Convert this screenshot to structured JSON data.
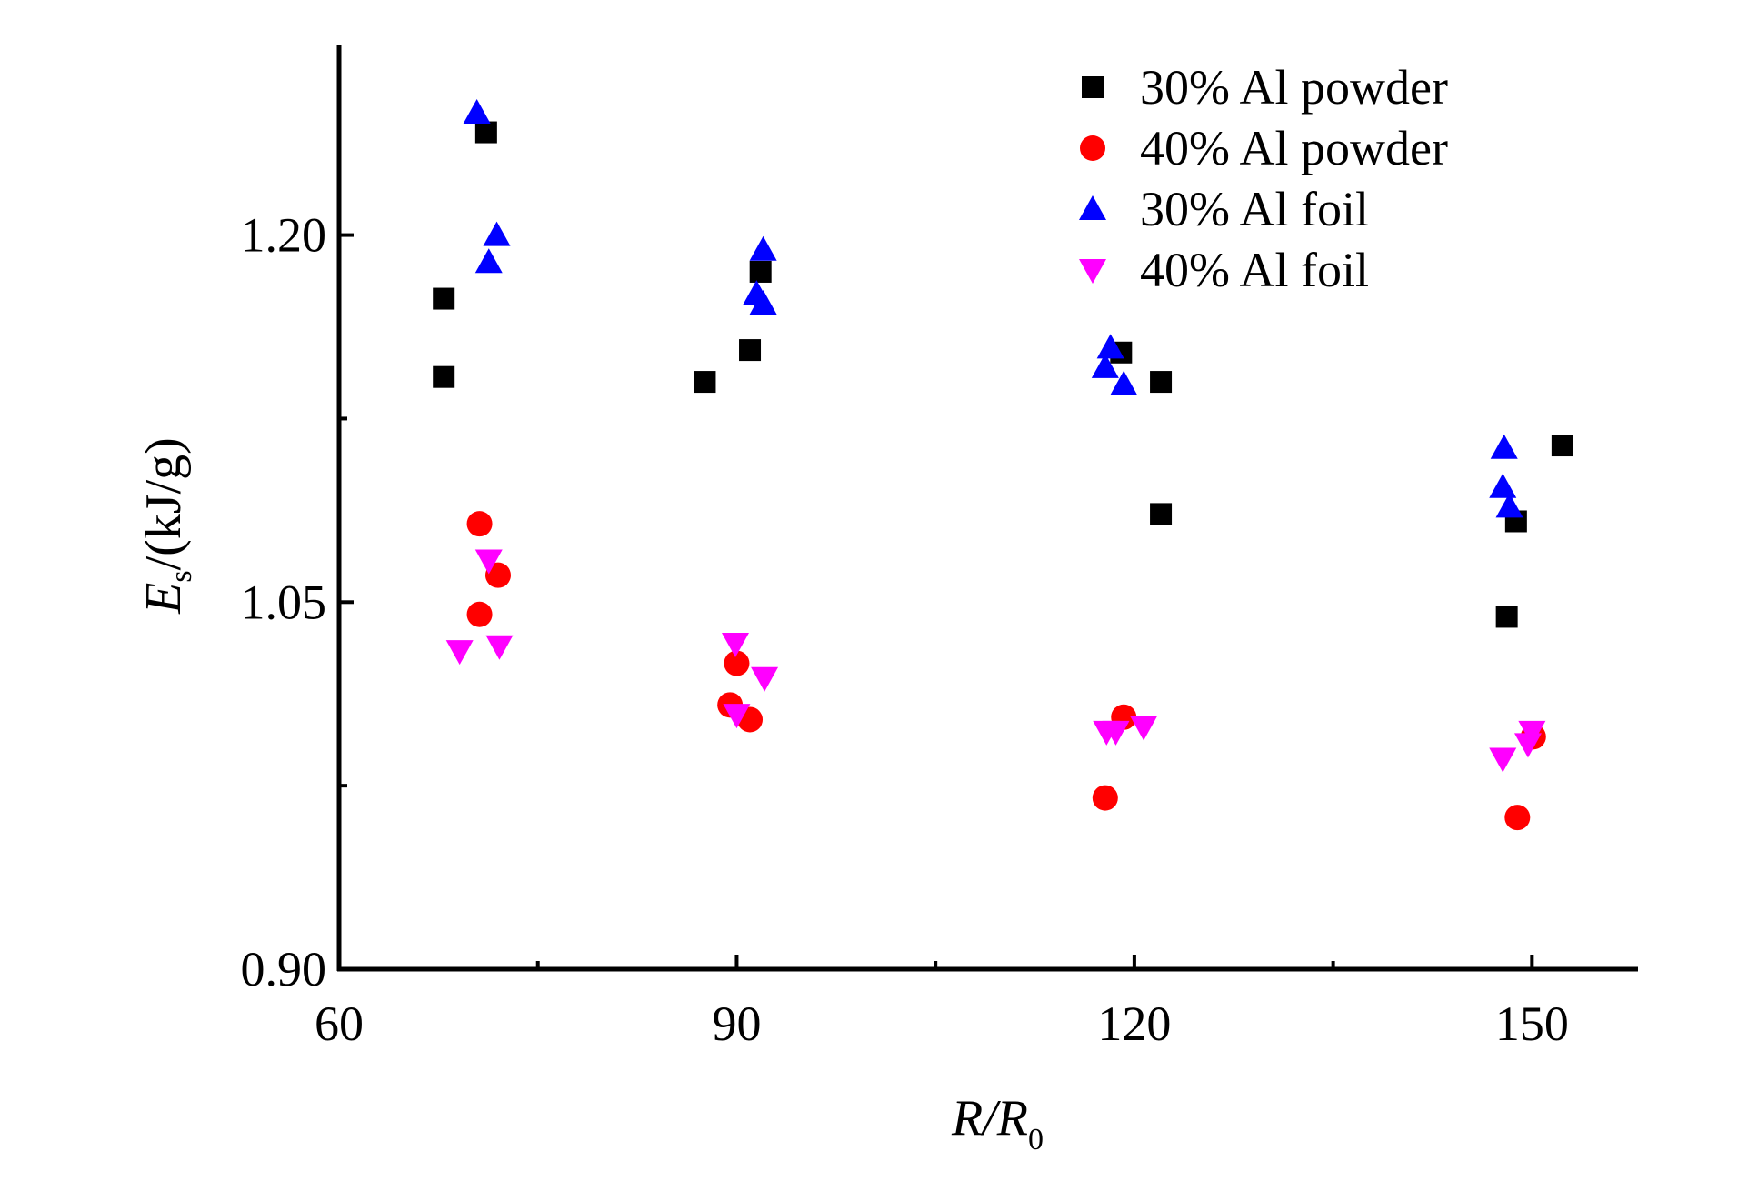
{
  "chart_data": {
    "type": "scatter",
    "title": "",
    "xlabel": {
      "main": "R/R",
      "sub": "0"
    },
    "ylabel": {
      "main": "E",
      "sub": "s",
      "unit": "/(kJ/g)"
    },
    "xlim": [
      60,
      158
    ],
    "ylim": [
      0.9,
      1.2775
    ],
    "xticks": [
      {
        "value": 60,
        "label": "60"
      },
      {
        "value": 90,
        "label": "90"
      },
      {
        "value": 120,
        "label": "120"
      },
      {
        "value": 150,
        "label": "150"
      }
    ],
    "xminor": [
      75,
      105,
      135
    ],
    "yticks": [
      {
        "value": 0.9,
        "label": "0.90"
      },
      {
        "value": 1.05,
        "label": "1.05"
      },
      {
        "value": 1.2,
        "label": "1.20"
      }
    ],
    "yminor": [
      0.975,
      1.125
    ],
    "legend_position": "top-right",
    "series": [
      {
        "name": "30% Al powder",
        "marker": "square",
        "color": "#000000",
        "points": [
          [
            67.9,
            1.174
          ],
          [
            67.9,
            1.142
          ],
          [
            71.1,
            1.242
          ],
          [
            87.6,
            1.14
          ],
          [
            91.0,
            1.153
          ],
          [
            91.8,
            1.185
          ],
          [
            119.0,
            1.152
          ],
          [
            122.0,
            1.14
          ],
          [
            122.0,
            1.086
          ],
          [
            148.1,
            1.044
          ],
          [
            148.8,
            1.083
          ],
          [
            152.3,
            1.114
          ]
        ]
      },
      {
        "name": "40% Al powder",
        "marker": "circle",
        "color": "#ff0000",
        "points": [
          [
            70.6,
            1.082
          ],
          [
            72.0,
            1.061
          ],
          [
            70.6,
            1.045
          ],
          [
            90.0,
            1.025
          ],
          [
            89.5,
            1.008
          ],
          [
            91.0,
            1.002
          ],
          [
            119.2,
            1.003
          ],
          [
            117.8,
            0.97
          ],
          [
            148.9,
            0.962
          ],
          [
            150.1,
            0.995
          ]
        ]
      },
      {
        "name": "30% Al foil",
        "marker": "triangle-up",
        "color": "#0000ff",
        "points": [
          [
            70.4,
            1.25
          ],
          [
            71.9,
            1.2
          ],
          [
            71.3,
            1.189
          ],
          [
            92.0,
            1.194
          ],
          [
            91.5,
            1.176
          ],
          [
            92.0,
            1.172
          ],
          [
            118.2,
            1.154
          ],
          [
            117.8,
            1.146
          ],
          [
            119.2,
            1.139
          ],
          [
            147.9,
            1.113
          ],
          [
            147.8,
            1.097
          ],
          [
            148.3,
            1.089
          ]
        ]
      },
      {
        "name": "40% Al foil",
        "marker": "triangle-down",
        "color": "#ff00ff",
        "points": [
          [
            69.1,
            1.03
          ],
          [
            72.1,
            1.032
          ],
          [
            71.3,
            1.067
          ],
          [
            89.9,
            1.033
          ],
          [
            92.1,
            1.019
          ],
          [
            90.0,
            1.004
          ],
          [
            117.9,
            0.997
          ],
          [
            118.6,
            0.997
          ],
          [
            120.7,
            0.999
          ],
          [
            147.8,
            0.986
          ],
          [
            149.7,
            0.992
          ],
          [
            150.0,
            0.997
          ]
        ]
      }
    ]
  }
}
